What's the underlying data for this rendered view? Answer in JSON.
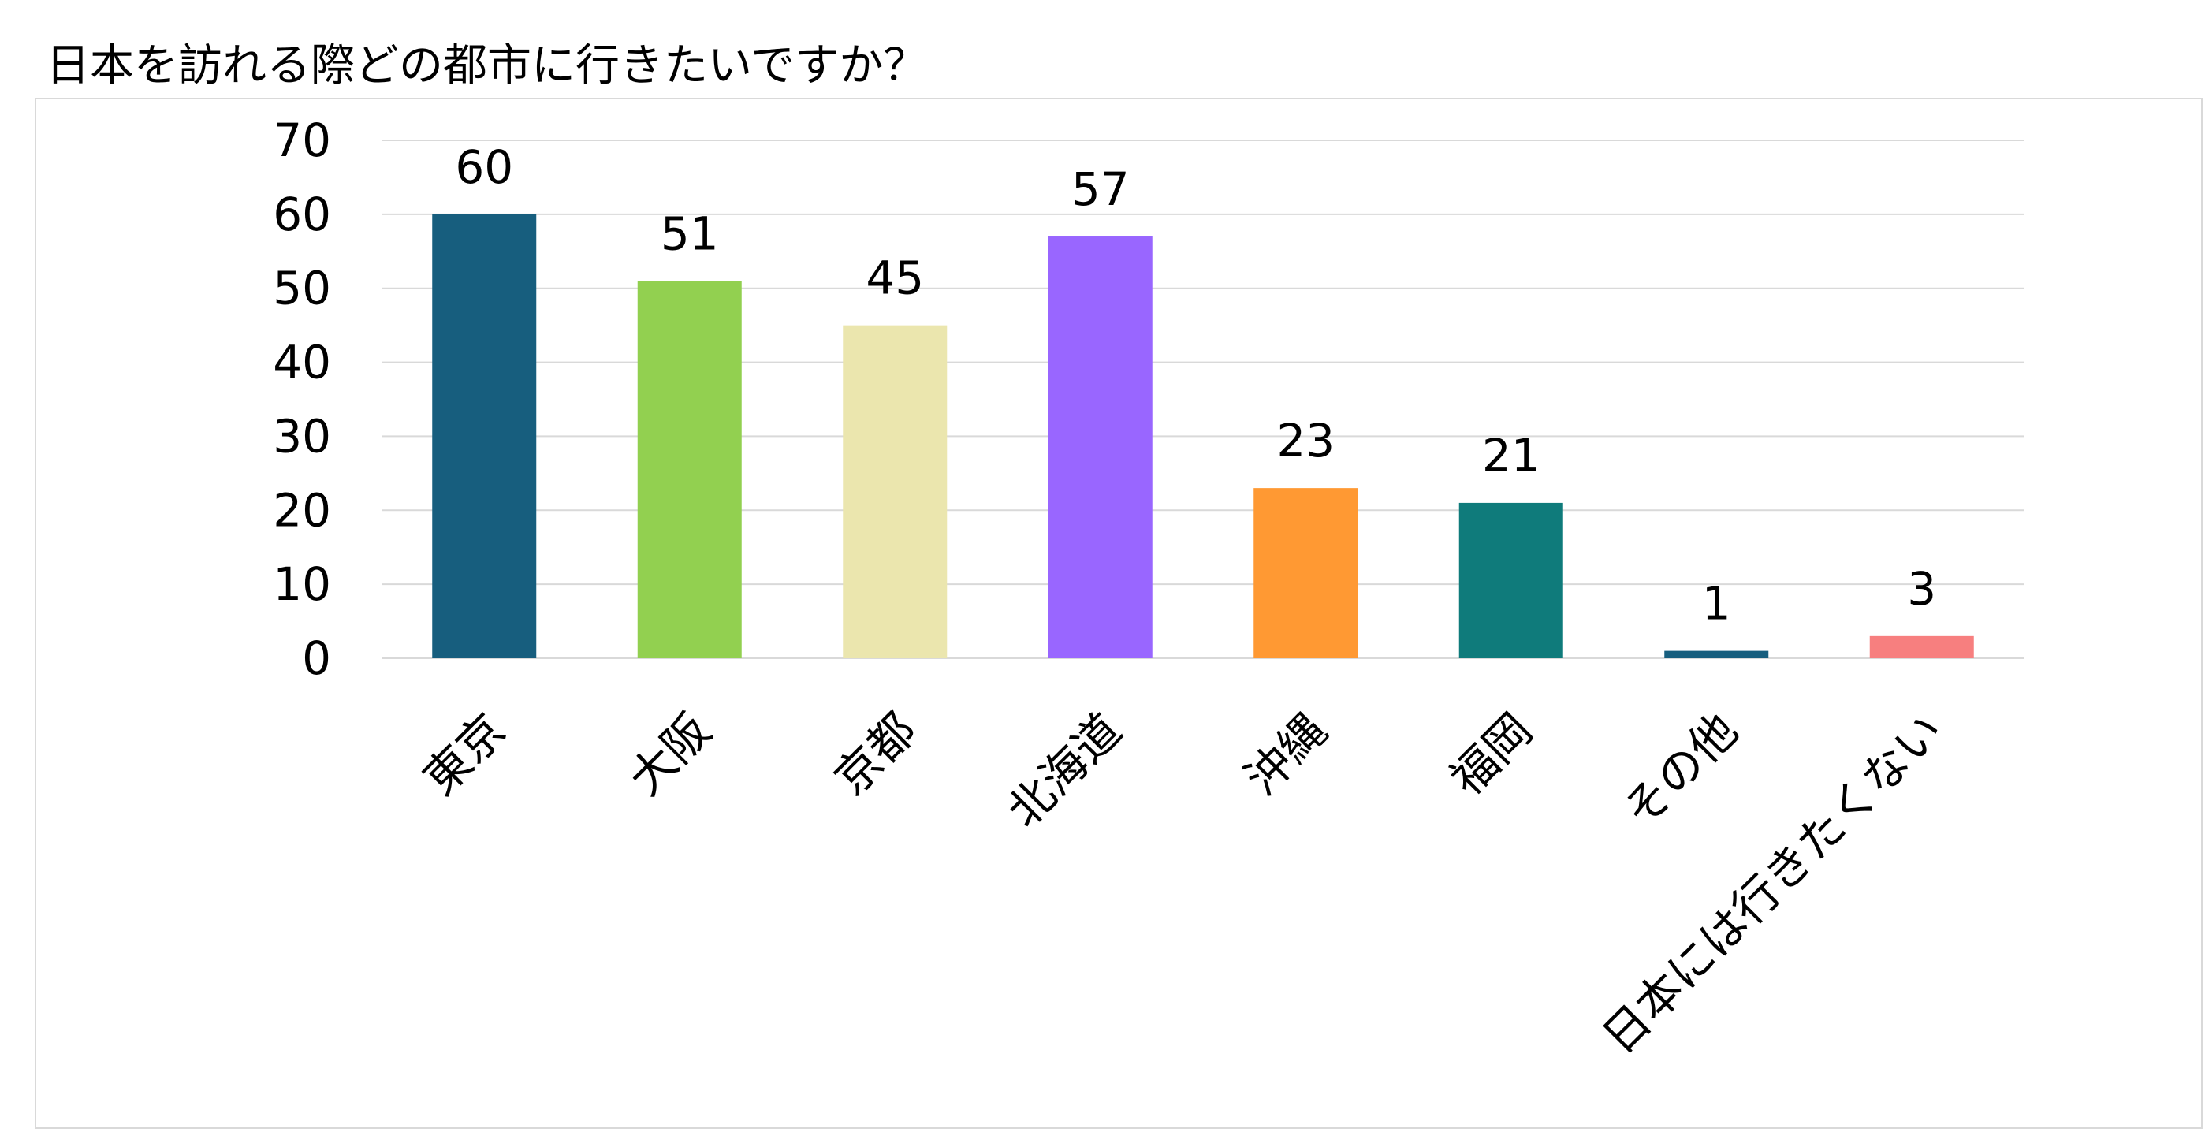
{
  "page": {
    "title": "日本を訪れる際どの都市に行きたいですか？"
  },
  "chart_data": {
    "type": "bar",
    "title": "日本を訪れる際どの都市に行きたいですか？",
    "xlabel": "",
    "ylabel": "",
    "categories": [
      "東京",
      "大阪",
      "京都",
      "北海道",
      "沖縄",
      "福岡",
      "その他",
      "日本には行きたくない"
    ],
    "values": [
      60,
      51,
      45,
      57,
      23,
      21,
      1,
      3
    ],
    "colors": [
      "#175e7e",
      "#92d050",
      "#ebe6ae",
      "#9966ff",
      "#ff9933",
      "#0f7b7b",
      "#175e7e",
      "#f77f7f"
    ],
    "ylim": [
      0,
      70
    ],
    "yticks": [
      0,
      10,
      20,
      30,
      40,
      50,
      60,
      70
    ],
    "grid": true,
    "gridline_color": "#d9d9d9",
    "legend": "none",
    "data_labels": true
  }
}
